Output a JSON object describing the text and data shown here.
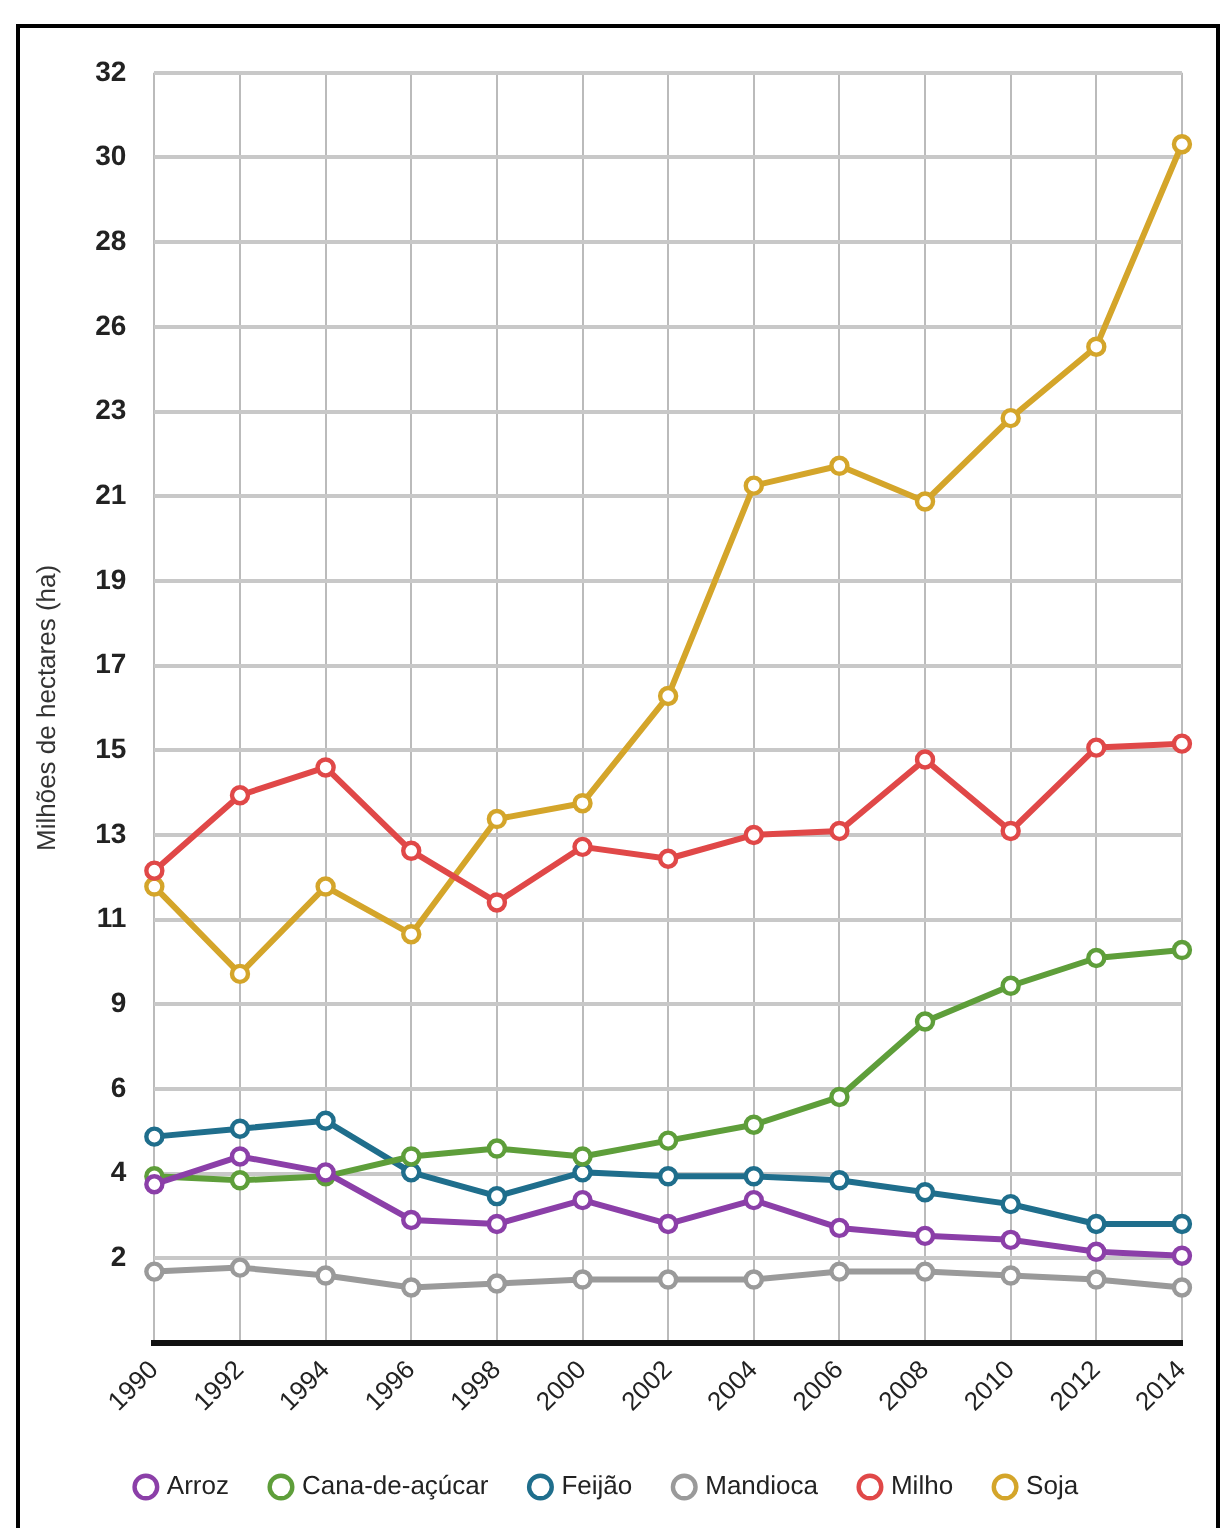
{
  "chart_data": {
    "type": "line",
    "ylabel": "Milhões de hectares (ha)",
    "categories": [
      "1990",
      "1992",
      "1994",
      "1996",
      "1998",
      "2000",
      "2002",
      "2004",
      "2006",
      "2008",
      "2010",
      "2012",
      "2014"
    ],
    "series": [
      {
        "name": "Arroz",
        "color": "#8b3fa8",
        "values": [
          4.0,
          4.7,
          4.3,
          3.1,
          3.0,
          3.6,
          3.0,
          3.6,
          2.9,
          2.7,
          2.6,
          2.3,
          2.2
        ]
      },
      {
        "name": "Cana-de-açúcar",
        "color": "#5e9e3a",
        "values": [
          4.2,
          4.1,
          4.2,
          4.7,
          4.9,
          4.7,
          5.1,
          5.5,
          6.2,
          8.1,
          9.0,
          9.7,
          9.9
        ]
      },
      {
        "name": "Feijão",
        "color": "#1f6e8c",
        "values": [
          5.2,
          5.4,
          5.6,
          4.3,
          3.7,
          4.3,
          4.2,
          4.2,
          4.1,
          3.8,
          3.5,
          3.0,
          3.0
        ]
      },
      {
        "name": "Mandioca",
        "color": "#9a9a9a",
        "values": [
          1.8,
          1.9,
          1.7,
          1.4,
          1.5,
          1.6,
          1.6,
          1.6,
          1.8,
          1.8,
          1.7,
          1.6,
          1.4
        ]
      },
      {
        "name": "Milho",
        "color": "#e04848",
        "values": [
          11.9,
          13.8,
          14.5,
          12.4,
          11.1,
          12.5,
          12.2,
          12.8,
          12.9,
          14.7,
          12.9,
          15.0,
          15.1
        ]
      },
      {
        "name": "Soja",
        "color": "#d4a52a",
        "values": [
          11.5,
          9.3,
          11.5,
          10.3,
          13.2,
          13.6,
          16.3,
          21.6,
          22.1,
          21.2,
          23.3,
          25.1,
          30.2
        ]
      }
    ],
    "ylim": [
      0,
      32
    ],
    "yticks": [
      {
        "value": 2.133,
        "label": "2"
      },
      {
        "value": 4.267,
        "label": "4"
      },
      {
        "value": 6.4,
        "label": "6"
      },
      {
        "value": 8.533,
        "label": "9"
      },
      {
        "value": 10.667,
        "label": "11"
      },
      {
        "value": 12.8,
        "label": "13"
      },
      {
        "value": 14.933,
        "label": "15"
      },
      {
        "value": 17.067,
        "label": "17"
      },
      {
        "value": 19.2,
        "label": "19"
      },
      {
        "value": 21.333,
        "label": "21"
      },
      {
        "value": 23.467,
        "label": "23"
      },
      {
        "value": 25.6,
        "label": "26"
      },
      {
        "value": 27.733,
        "label": "28"
      },
      {
        "value": 29.867,
        "label": "30"
      },
      {
        "value": 32,
        "label": "32"
      }
    ],
    "grid": true,
    "legend": "bottom",
    "marker": "circle",
    "line_style": "solid"
  }
}
